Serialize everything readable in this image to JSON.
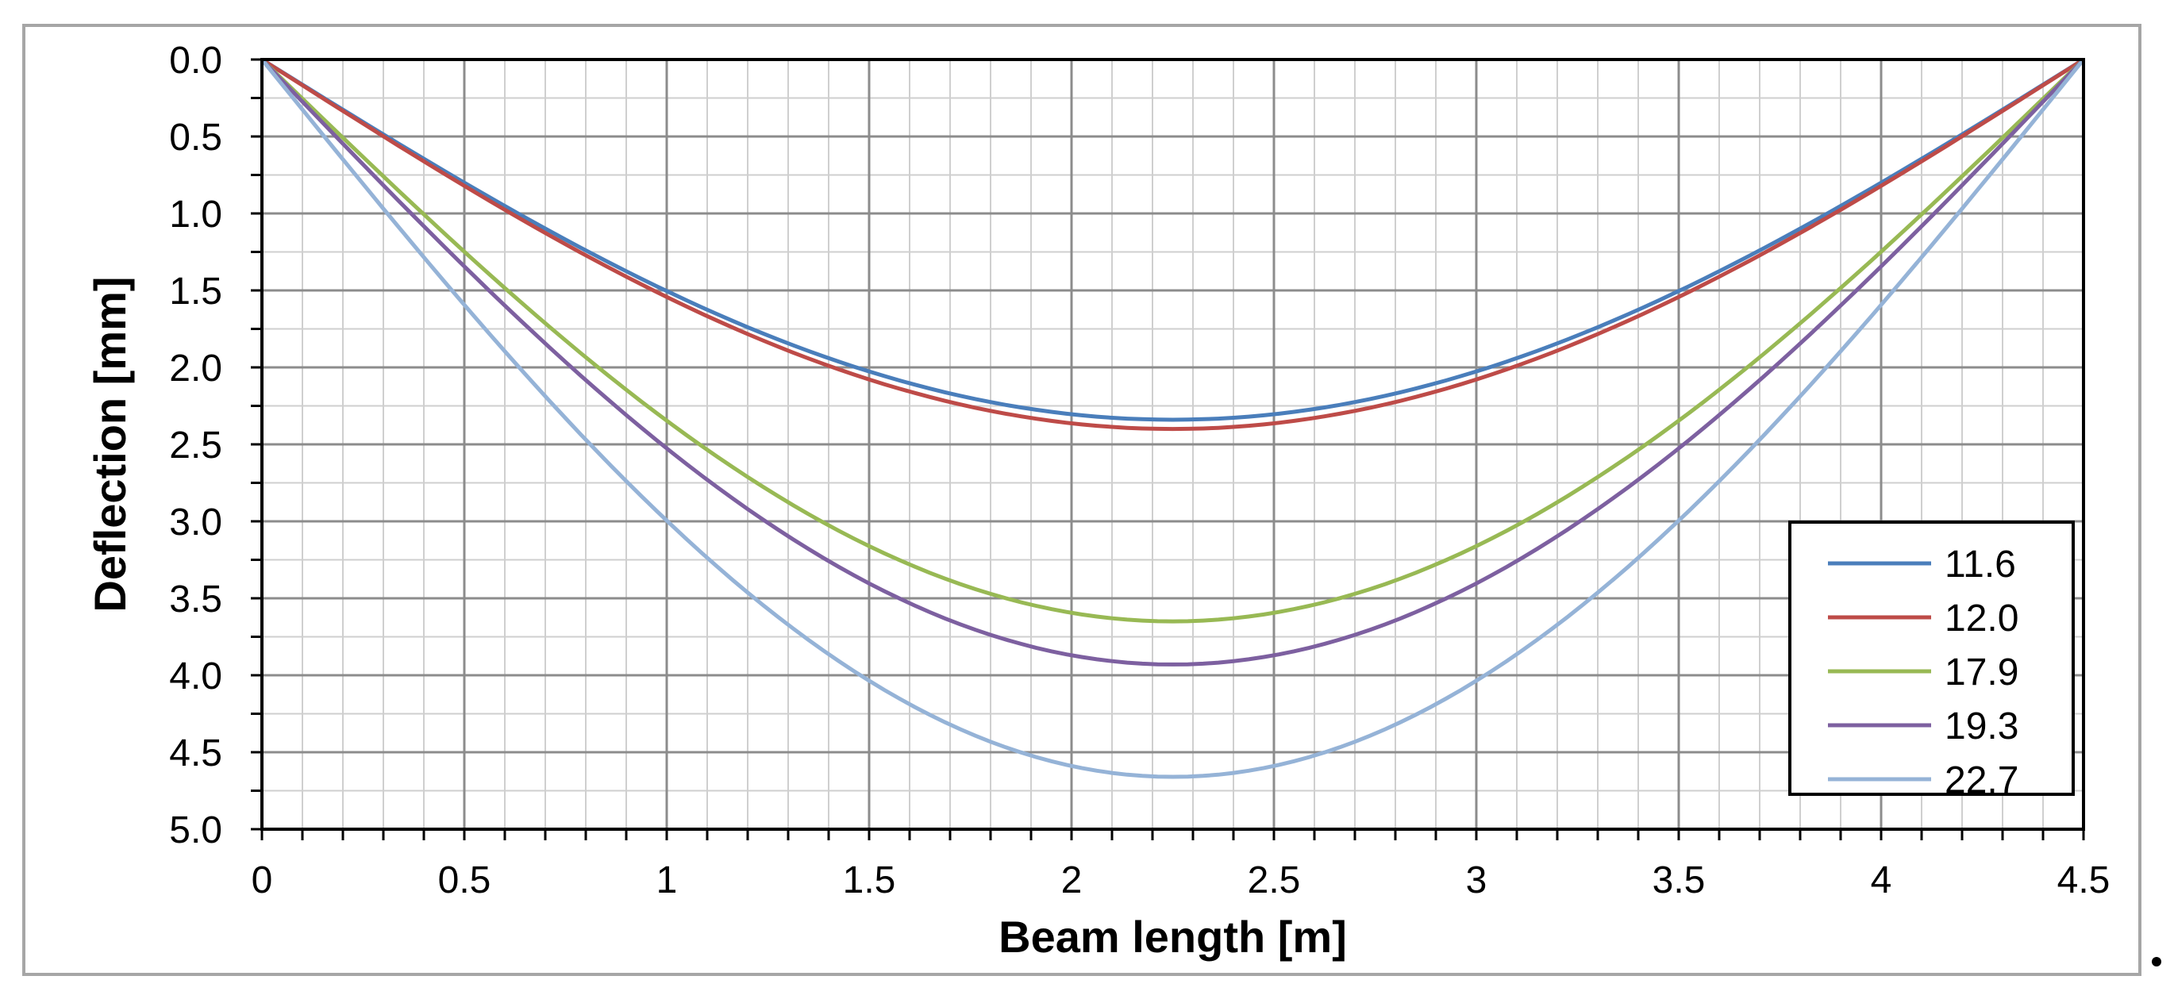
{
  "chart_data": {
    "type": "line",
    "title": "",
    "xlabel": "Beam length [m]",
    "ylabel": "Deflection [mm]",
    "xlim": [
      0,
      4.5
    ],
    "ylim": [
      0,
      5.0
    ],
    "y_inverted": true,
    "x_ticks": [
      "0",
      "0.5",
      "1",
      "1.5",
      "2",
      "2.5",
      "3",
      "3.5",
      "4",
      "4.5"
    ],
    "y_ticks": [
      "0.0",
      "0.5",
      "1.0",
      "1.5",
      "2.0",
      "2.5",
      "3.0",
      "3.5",
      "4.0",
      "4.5",
      "5.0"
    ],
    "grid": true,
    "legend_position": "bottom-right",
    "series": [
      {
        "name": "11.6",
        "color": "#4a7ebb",
        "max_deflection": 2.34,
        "x": [
          0,
          0.5,
          1,
          1.5,
          2,
          2.25,
          2.5,
          3,
          3.5,
          4,
          4.5
        ],
        "y": [
          0,
          0.76,
          1.45,
          2.0,
          2.3,
          2.34,
          2.3,
          2.0,
          1.45,
          0.76,
          0
        ]
      },
      {
        "name": "12.0",
        "color": "#be4b48",
        "max_deflection": 2.4,
        "x": [
          0,
          0.5,
          1,
          1.5,
          2,
          2.25,
          2.5,
          3,
          3.5,
          4,
          4.5
        ],
        "y": [
          0,
          0.78,
          1.49,
          2.05,
          2.36,
          2.4,
          2.36,
          2.05,
          1.49,
          0.78,
          0
        ]
      },
      {
        "name": "17.9",
        "color": "#98b954",
        "max_deflection": 3.65,
        "x": [
          0,
          0.5,
          1,
          1.5,
          2,
          2.25,
          2.5,
          3,
          3.5,
          4,
          4.5
        ],
        "y": [
          0,
          1.18,
          2.27,
          3.12,
          3.59,
          3.65,
          3.59,
          3.12,
          2.27,
          1.18,
          0
        ]
      },
      {
        "name": "19.3",
        "color": "#7d60a0",
        "max_deflection": 3.93,
        "x": [
          0,
          0.5,
          1,
          1.5,
          2,
          2.25,
          2.5,
          3,
          3.5,
          4,
          4.5
        ],
        "y": [
          0,
          1.27,
          2.44,
          3.36,
          3.87,
          3.93,
          3.87,
          3.36,
          2.44,
          1.27,
          0
        ]
      },
      {
        "name": "22.7",
        "color": "#95b3d7",
        "max_deflection": 4.66,
        "x": [
          0,
          0.5,
          1,
          1.5,
          2,
          2.25,
          2.5,
          3,
          3.5,
          4,
          4.5
        ],
        "y": [
          0,
          1.51,
          2.89,
          3.98,
          4.58,
          4.66,
          4.58,
          3.98,
          2.89,
          1.51,
          0
        ]
      }
    ]
  }
}
